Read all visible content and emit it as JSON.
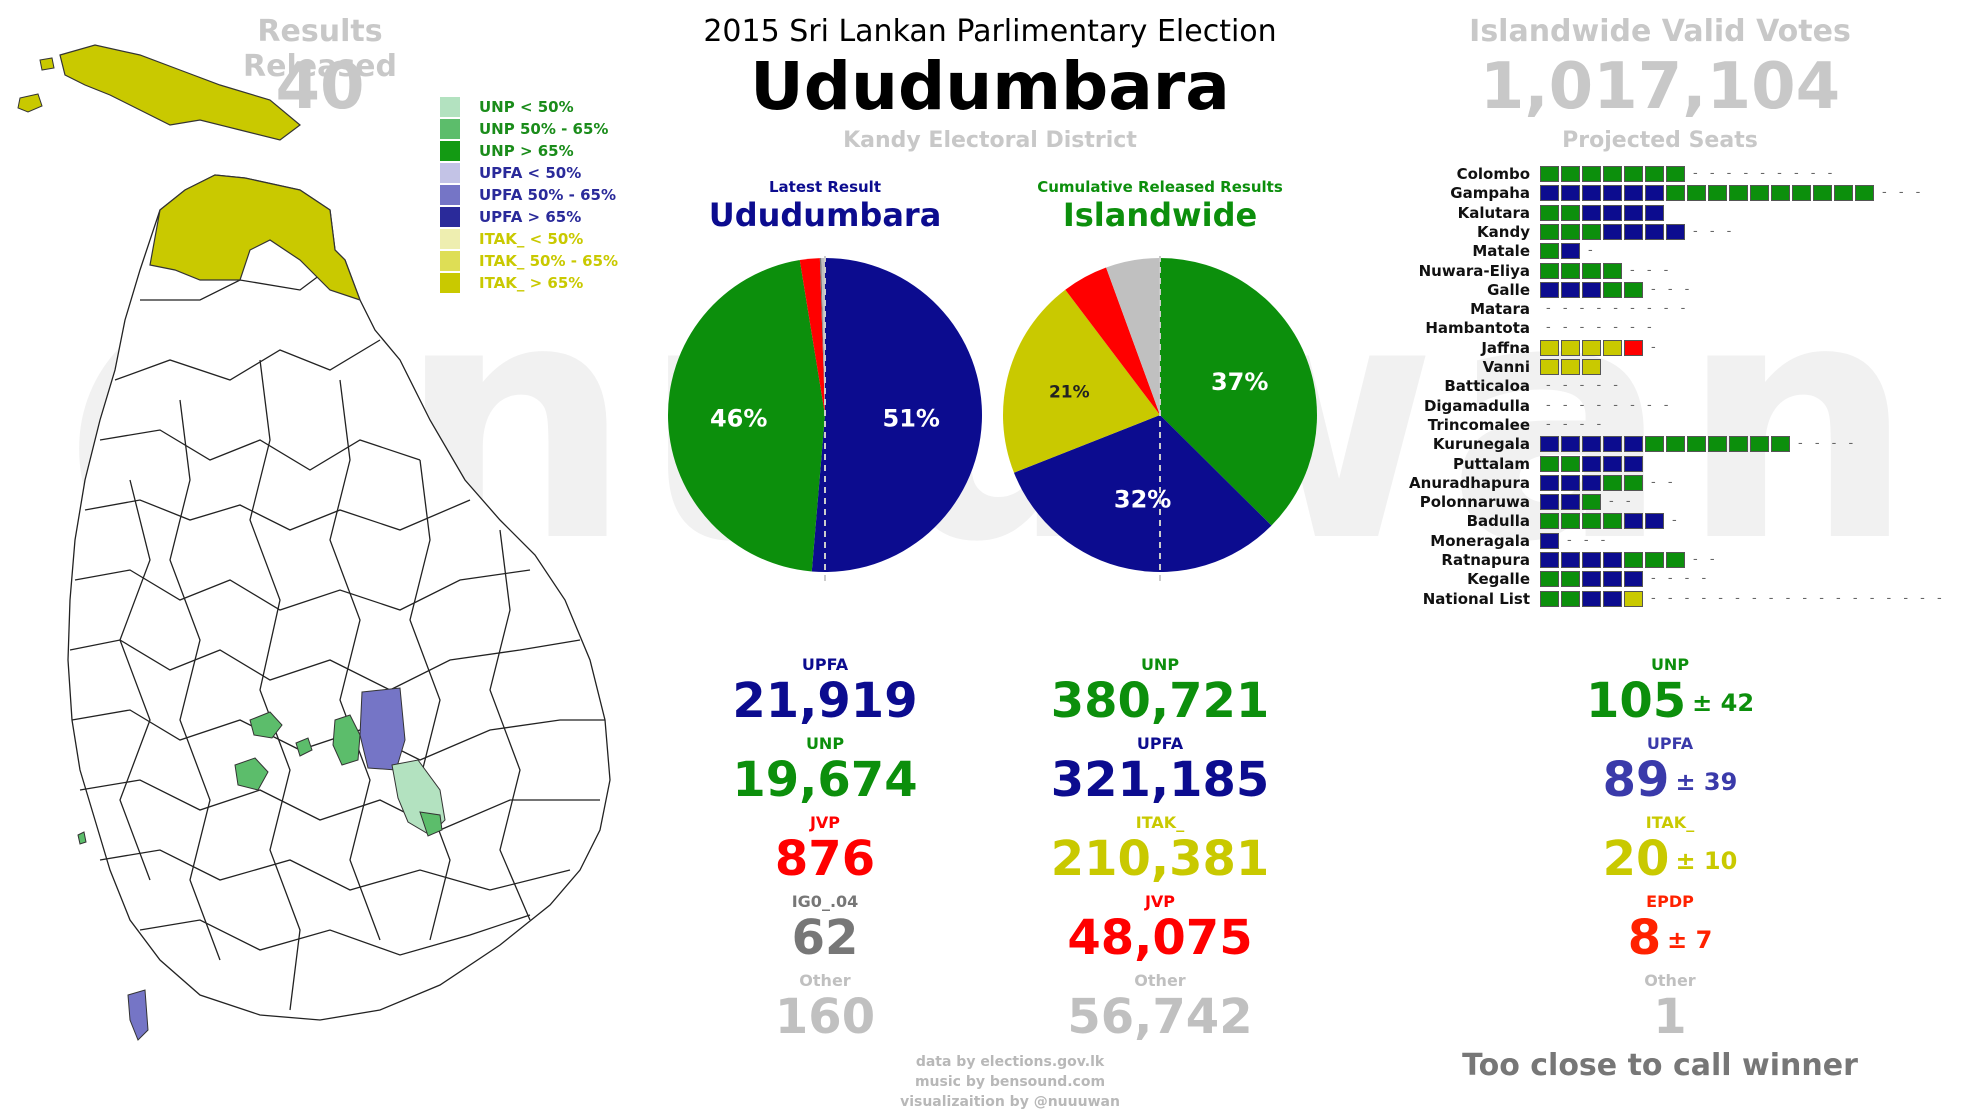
{
  "watermark": "@nuuwan",
  "header": {
    "results_released_label": "Results Released",
    "results_released_value": "40",
    "title": "2015 Sri Lankan Parlimentary Election",
    "electorate": "Ududumbara",
    "district": "Kandy Electoral District",
    "valid_votes_label": "Islandwide Valid Votes",
    "valid_votes_value": "1,017,104",
    "projected_seats_label": "Projected Seats"
  },
  "legend": [
    {
      "label": "UNP < 50%",
      "color": "#b3e2c0",
      "text_color": "#1a8c1a"
    },
    {
      "label": "UNP 50% - 65%",
      "color": "#5cbd6b",
      "text_color": "#1a8c1a"
    },
    {
      "label": "UNP > 65%",
      "color": "#139a13",
      "text_color": "#1a8c1a"
    },
    {
      "label": "UPFA < 50%",
      "color": "#c3c3e6",
      "text_color": "#2a2a9a"
    },
    {
      "label": "UPFA 50% - 65%",
      "color": "#7575c6",
      "text_color": "#2a2a9a"
    },
    {
      "label": "UPFA > 65%",
      "color": "#2a2a9a",
      "text_color": "#2a2a9a"
    },
    {
      "label": "ITAK_ < 50%",
      "color": "#eeeeb0",
      "text_color": "#c9c900"
    },
    {
      "label": "ITAK_ 50% - 65%",
      "color": "#dede55",
      "text_color": "#c9c900"
    },
    {
      "label": "ITAK_ > 65%",
      "color": "#c9c900",
      "text_color": "#c9c900"
    }
  ],
  "colors": {
    "unp": "#0c8f0c",
    "upfa": "#0c0c8f",
    "itak": "#c9c900",
    "jvp": "#ff0000",
    "other": "#c0c0c0",
    "ig": "#777777"
  },
  "chart_data": [
    {
      "type": "pie",
      "subtitle": "Latest Result",
      "title": "Ududumbara",
      "series": [
        {
          "name": "UPFA",
          "value": 21919,
          "color": "#0c0c8f",
          "label": "51%"
        },
        {
          "name": "UNP",
          "value": 19674,
          "color": "#0c8f0c",
          "label": "46%"
        },
        {
          "name": "JVP",
          "value": 876,
          "color": "#ff0000",
          "label": ""
        },
        {
          "name": "IG0_.04",
          "value": 62,
          "color": "#777777",
          "label": ""
        },
        {
          "name": "Other",
          "value": 160,
          "color": "#c0c0c0",
          "label": ""
        }
      ]
    },
    {
      "type": "pie",
      "subtitle": "Cumulative Released Results",
      "title": "Islandwide",
      "series": [
        {
          "name": "UNP",
          "value": 380721,
          "color": "#0c8f0c",
          "label": "37%"
        },
        {
          "name": "UPFA",
          "value": 321185,
          "color": "#0c0c8f",
          "label": "32%"
        },
        {
          "name": "ITAK_",
          "value": 210381,
          "color": "#c9c900",
          "label": "21%"
        },
        {
          "name": "JVP",
          "value": 48075,
          "color": "#ff0000",
          "label": ""
        },
        {
          "name": "Other",
          "value": 56742,
          "color": "#c0c0c0",
          "label": ""
        }
      ]
    },
    {
      "type": "bar",
      "title": "Projected Seats",
      "districts": [
        {
          "name": "Colombo",
          "seats": [
            "UNP",
            "UNP",
            "UNP",
            "UNP",
            "UNP",
            "UNP",
            "UNP"
          ],
          "dashes": 9
        },
        {
          "name": "Gampaha",
          "seats": [
            "UPFA",
            "UPFA",
            "UPFA",
            "UPFA",
            "UPFA",
            "UPFA",
            "UNP",
            "UNP",
            "UNP",
            "UNP",
            "UNP",
            "UNP",
            "UNP",
            "UNP",
            "UNP",
            "UNP"
          ],
          "dashes": 3
        },
        {
          "name": "Kalutara",
          "seats": [
            "UNP",
            "UNP",
            "UPFA",
            "UPFA",
            "UPFA",
            "UPFA"
          ],
          "dashes": 0
        },
        {
          "name": "Kandy",
          "seats": [
            "UNP",
            "UNP",
            "UNP",
            "UPFA",
            "UPFA",
            "UPFA",
            "UPFA"
          ],
          "dashes": 3
        },
        {
          "name": "Matale",
          "seats": [
            "UNP",
            "UPFA"
          ],
          "dashes": 1
        },
        {
          "name": "Nuwara-Eliya",
          "seats": [
            "UNP",
            "UNP",
            "UNP",
            "UNP"
          ],
          "dashes": 3
        },
        {
          "name": "Galle",
          "seats": [
            "UPFA",
            "UPFA",
            "UPFA",
            "UNP",
            "UNP"
          ],
          "dashes": 3
        },
        {
          "name": "Matara",
          "seats": [],
          "dashes": 9
        },
        {
          "name": "Hambantota",
          "seats": [],
          "dashes": 7
        },
        {
          "name": "Jaffna",
          "seats": [
            "ITAK",
            "ITAK",
            "ITAK",
            "ITAK",
            "JVP"
          ],
          "dashes": 1
        },
        {
          "name": "Vanni",
          "seats": [
            "ITAK",
            "ITAK",
            "ITAK"
          ],
          "dashes": 0
        },
        {
          "name": "Batticaloa",
          "seats": [],
          "dashes": 5
        },
        {
          "name": "Digamadulla",
          "seats": [],
          "dashes": 8
        },
        {
          "name": "Trincomalee",
          "seats": [],
          "dashes": 4
        },
        {
          "name": "Kurunegala",
          "seats": [
            "UPFA",
            "UPFA",
            "UPFA",
            "UPFA",
            "UPFA",
            "UNP",
            "UNP",
            "UNP",
            "UNP",
            "UNP",
            "UNP",
            "UNP"
          ],
          "dashes": 4
        },
        {
          "name": "Puttalam",
          "seats": [
            "UNP",
            "UNP",
            "UPFA",
            "UPFA",
            "UPFA"
          ],
          "dashes": 0
        },
        {
          "name": "Anuradhapura",
          "seats": [
            "UPFA",
            "UPFA",
            "UPFA",
            "UNP",
            "UNP"
          ],
          "dashes": 2
        },
        {
          "name": "Polonnaruwa",
          "seats": [
            "UPFA",
            "UPFA",
            "UNP"
          ],
          "dashes": 2
        },
        {
          "name": "Badulla",
          "seats": [
            "UNP",
            "UNP",
            "UNP",
            "UNP",
            "UPFA",
            "UPFA"
          ],
          "dashes": 1
        },
        {
          "name": "Moneragala",
          "seats": [
            "UPFA"
          ],
          "dashes": 3
        },
        {
          "name": "Ratnapura",
          "seats": [
            "UPFA",
            "UPFA",
            "UPFA",
            "UPFA",
            "UNP",
            "UNP",
            "UNP"
          ],
          "dashes": 2
        },
        {
          "name": "Kegalle",
          "seats": [
            "UNP",
            "UNP",
            "UPFA",
            "UPFA",
            "UPFA"
          ],
          "dashes": 4
        },
        {
          "name": "National List",
          "seats": [
            "UNP",
            "UNP",
            "UPFA",
            "UPFA",
            "ITAK"
          ],
          "dashes": 18
        }
      ]
    }
  ],
  "local_results": [
    {
      "party": "UPFA",
      "votes": "21,919",
      "color": "#0c0c8f"
    },
    {
      "party": "UNP",
      "votes": "19,674",
      "color": "#0c8f0c"
    },
    {
      "party": "JVP",
      "votes": "876",
      "color": "#ff0000"
    },
    {
      "party": "IG0_.04",
      "votes": "62",
      "color": "#777777"
    },
    {
      "party": "Other",
      "votes": "160",
      "color": "#c0c0c0"
    }
  ],
  "islandwide_results": [
    {
      "party": "UNP",
      "votes": "380,721",
      "color": "#0c8f0c"
    },
    {
      "party": "UPFA",
      "votes": "321,185",
      "color": "#0c0c8f"
    },
    {
      "party": "ITAK_",
      "votes": "210,381",
      "color": "#c9c900"
    },
    {
      "party": "JVP",
      "votes": "48,075",
      "color": "#ff0000"
    },
    {
      "party": "Other",
      "votes": "56,742",
      "color": "#c0c0c0"
    }
  ],
  "seat_projection": [
    {
      "party": "UNP",
      "seats": "105",
      "margin": "± 42",
      "color": "#0c8f0c"
    },
    {
      "party": "UPFA",
      "seats": "89",
      "margin": "± 39",
      "color": "#3a3aaa"
    },
    {
      "party": "ITAK_",
      "seats": "20",
      "margin": "± 10",
      "color": "#c9c900"
    },
    {
      "party": "EPDP",
      "seats": "8",
      "margin": "± 7",
      "color": "#ff2200"
    },
    {
      "party": "Other",
      "seats": "1",
      "margin": "",
      "color": "#c0c0c0"
    }
  ],
  "verdict": "Too close to call winner",
  "footer": {
    "line1": "data by elections.gov.lk",
    "line2": "music by bensound.com",
    "line3": "visualizaition by @nuuuwan"
  }
}
